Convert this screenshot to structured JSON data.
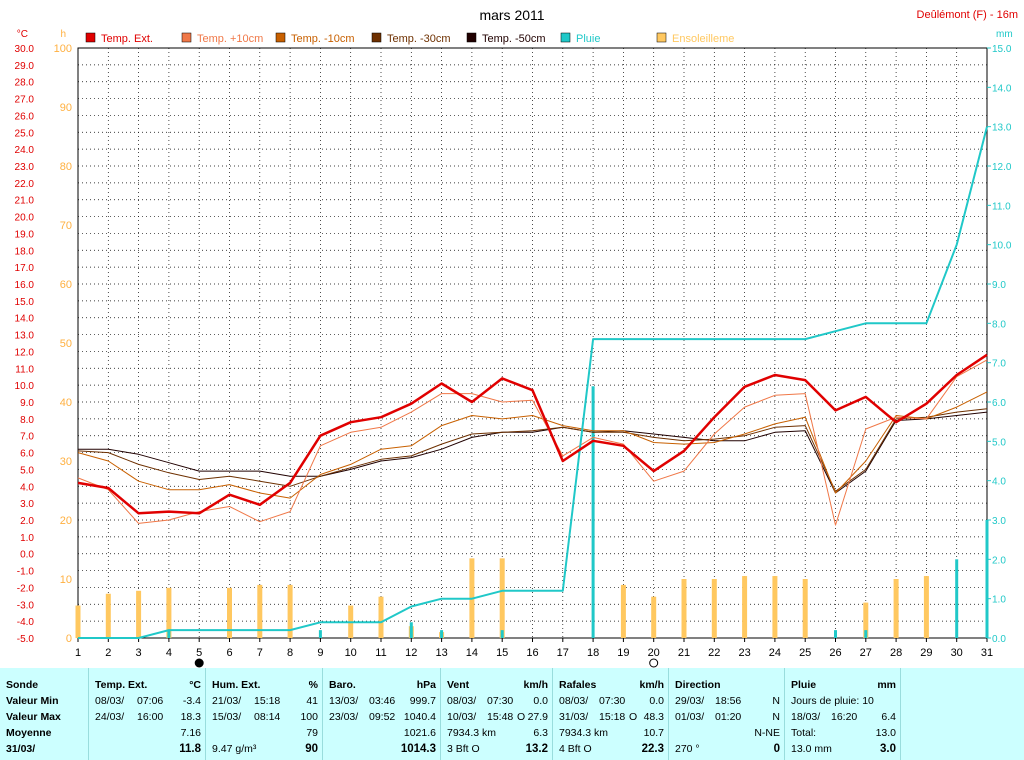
{
  "chart_data": {
    "type": "line",
    "title": "mars 2011",
    "station": "Deûlémont (F) - 16m",
    "x": [
      1,
      2,
      3,
      4,
      5,
      6,
      7,
      8,
      9,
      10,
      11,
      12,
      13,
      14,
      15,
      16,
      17,
      18,
      19,
      20,
      21,
      22,
      23,
      24,
      25,
      26,
      27,
      28,
      29,
      30,
      31
    ],
    "axes": {
      "temp": {
        "label": "°C",
        "range": [
          -5,
          30
        ],
        "ticks": [
          "30.0",
          "29.0",
          "28.0",
          "27.0",
          "26.0",
          "25.0",
          "24.0",
          "23.0",
          "22.0",
          "21.0",
          "20.0",
          "19.0",
          "18.0",
          "17.0",
          "16.0",
          "15.0",
          "14.0",
          "13.0",
          "12.0",
          "11.0",
          "10.0",
          "9.0",
          "8.0",
          "7.0",
          "6.0",
          "5.0",
          "4.0",
          "3.0",
          "2.0",
          "1.0",
          "0.0",
          "-1.0",
          "-2.0",
          "-3.0",
          "-4.0",
          "-5.0"
        ]
      },
      "sun": {
        "label": "h",
        "range": [
          0,
          100
        ],
        "ticks": [
          "100",
          "90",
          "80",
          "70",
          "60",
          "50",
          "40",
          "30",
          "20",
          "10",
          "0"
        ]
      },
      "rain": {
        "label": "mm",
        "range": [
          0,
          15
        ],
        "ticks": [
          "15.0",
          "14.0",
          "13.0",
          "12.0",
          "11.0",
          "10.0",
          "9.0",
          "8.0",
          "7.0",
          "6.0",
          "5.0",
          "4.0",
          "3.0",
          "2.0",
          "1.0",
          "0.0"
        ]
      }
    },
    "xticks": [
      "1",
      "2",
      "3",
      "4",
      "5",
      "6",
      "7",
      "8",
      "9",
      "10",
      "11",
      "12",
      "13",
      "14",
      "15",
      "16",
      "17",
      "18",
      "19",
      "20",
      "21",
      "22",
      "23",
      "24",
      "25",
      "26",
      "27",
      "28",
      "29",
      "30",
      "31"
    ],
    "series": [
      {
        "name": "Temp. Ext.",
        "color": "#e00000",
        "axis": "temp",
        "width": 2.5,
        "values": [
          4.2,
          3.9,
          2.4,
          2.5,
          2.4,
          3.5,
          2.9,
          4.2,
          7.0,
          7.8,
          8.1,
          8.9,
          10.1,
          9.0,
          10.4,
          9.7,
          5.5,
          6.7,
          6.4,
          4.9,
          6.1,
          8.1,
          9.9,
          10.6,
          10.3,
          8.5,
          9.3,
          7.8,
          8.9,
          10.6,
          11.8
        ]
      },
      {
        "name": "Temp. +10cm",
        "color": "#f07848",
        "axis": "temp",
        "width": 1,
        "values": [
          4.5,
          3.8,
          1.8,
          2.0,
          2.5,
          2.8,
          1.9,
          2.5,
          6.4,
          7.2,
          7.5,
          8.4,
          9.5,
          9.5,
          9.0,
          9.1,
          5.8,
          6.9,
          6.5,
          4.3,
          4.9,
          7.1,
          8.7,
          9.4,
          9.5,
          1.7,
          7.4,
          8.1,
          8.0,
          10.5,
          11.5
        ]
      },
      {
        "name": "Temp. -10cm",
        "color": "#c86000",
        "axis": "temp",
        "width": 1,
        "values": [
          6.0,
          5.5,
          4.3,
          3.8,
          3.8,
          4.1,
          3.6,
          3.3,
          4.7,
          5.3,
          6.2,
          6.4,
          7.6,
          8.2,
          8.0,
          8.2,
          7.6,
          7.3,
          7.3,
          6.6,
          6.5,
          6.6,
          7.1,
          7.7,
          8.1,
          3.6,
          5.5,
          8.2,
          8.0,
          8.7,
          9.6
        ]
      },
      {
        "name": "Temp. -30cm",
        "color": "#6e3000",
        "axis": "temp",
        "width": 1,
        "values": [
          6.1,
          6.0,
          5.3,
          4.8,
          4.4,
          4.6,
          4.3,
          4.0,
          4.6,
          5.1,
          5.6,
          5.8,
          6.5,
          7.1,
          7.2,
          7.3,
          7.5,
          7.2,
          7.2,
          6.9,
          6.7,
          6.8,
          7.0,
          7.5,
          7.6,
          3.7,
          5.0,
          8.0,
          8.1,
          8.4,
          8.6
        ]
      },
      {
        "name": "Temp. -50cm",
        "color": "#200000",
        "axis": "temp",
        "width": 1,
        "values": [
          6.2,
          6.2,
          5.9,
          5.4,
          4.9,
          4.9,
          4.9,
          4.6,
          4.6,
          5.0,
          5.5,
          5.7,
          6.2,
          6.9,
          7.2,
          7.2,
          7.5,
          7.2,
          7.3,
          7.1,
          6.9,
          6.7,
          6.7,
          7.2,
          7.3,
          3.6,
          4.9,
          7.9,
          8.0,
          8.2,
          8.4
        ]
      },
      {
        "name": "Pluie",
        "color": "#20c8c8",
        "axis": "rain",
        "width": 2,
        "values": [
          0,
          0,
          0,
          0.2,
          0.2,
          0.2,
          0.2,
          0.2,
          0.4,
          0.4,
          0.4,
          0.8,
          1.0,
          1.0,
          1.2,
          1.2,
          1.2,
          7.6,
          7.6,
          7.6,
          7.6,
          7.6,
          7.6,
          7.6,
          7.6,
          7.8,
          8.0,
          8.0,
          8.0,
          10.0,
          13.0
        ]
      }
    ],
    "rain_daily": {
      "name": "Pluie (jour)",
      "color": "#20c8c8",
      "axis": "rain",
      "values": [
        0,
        0,
        0,
        0.2,
        0,
        0,
        0,
        0,
        0.2,
        0,
        0,
        0.4,
        0.2,
        0,
        0.2,
        0,
        0,
        6.4,
        0,
        0,
        0,
        0,
        0,
        0,
        0,
        0.2,
        0.2,
        0,
        0,
        2.0,
        3.0
      ]
    },
    "sunshine": {
      "name": "Ensoleilleme",
      "color": "#ffc860",
      "axis": "sun",
      "values": [
        5.5,
        7.5,
        8.0,
        8.5,
        0,
        8.5,
        9.0,
        9.0,
        0,
        5.5,
        7.0,
        2.0,
        1.0,
        13.5,
        13.5,
        0,
        0,
        0,
        9.0,
        7.0,
        10.0,
        10.0,
        10.5,
        10.5,
        10.0,
        0,
        6.0,
        10.0,
        10.5,
        0,
        0
      ]
    },
    "moon_phases": [
      {
        "day": 5,
        "phase": "new-moon"
      },
      {
        "day": 20,
        "phase": "full-moon"
      }
    ],
    "legend_placement": "top",
    "grid": true
  },
  "stats": {
    "labels": {
      "sonde": "Sonde",
      "min": "Valeur Min",
      "max": "Valeur Max",
      "mean": "Moyenne",
      "day": "31/03/"
    },
    "temp": {
      "title": "Temp. Ext.",
      "unit": "°C",
      "min_date": "08/03/",
      "min_time": "07:06",
      "min_val": "-3.4",
      "max_date": "24/03/",
      "max_time": "16:00",
      "max_val": "18.3",
      "mean": "7.16",
      "last": "11.8"
    },
    "hum": {
      "title": "Hum. Ext.",
      "unit": "%",
      "min_date": "21/03/",
      "min_time": "15:18",
      "min_val": "41",
      "max_date": "15/03/",
      "max_time": "08:14",
      "max_val": "100",
      "mean": "79",
      "extra": "9.47 g/m³",
      "last": "90"
    },
    "baro": {
      "title": "Baro.",
      "unit": "hPa",
      "min_date": "13/03/",
      "min_time": "03:46",
      "min_val": "999.7",
      "max_date": "23/03/",
      "max_time": "09:52",
      "max_val": "1040.4",
      "mean": "1021.6",
      "last": "1014.3"
    },
    "vent": {
      "title": "Vent",
      "unit": "km/h",
      "min_date": "08/03/",
      "min_time": "07:30",
      "min_val": "0.0",
      "max_date": "10/03/",
      "max_time": "15:48",
      "max_dir": "O",
      "max_val": "27.9",
      "dist": "7934.3 km",
      "mean": "6.3",
      "bft": "3 Bft O",
      "last": "13.2"
    },
    "rafales": {
      "title": "Rafales",
      "unit": "km/h",
      "min_date": "08/03/",
      "min_time": "07:30",
      "min_val": "0.0",
      "max_date": "31/03/",
      "max_time": "15:18",
      "max_dir": "O",
      "max_val": "48.3",
      "dist": "7934.3 km",
      "mean": "10.7",
      "bft": "4 Bft O",
      "last": "22.3"
    },
    "direction": {
      "title": "Direction",
      "min_date": "29/03/",
      "min_time": "18:56",
      "min_val": "N",
      "max_date": "01/03/",
      "max_time": "01:20",
      "max_val": "N",
      "mean": "N-NE",
      "deg": "270 °",
      "last": "0"
    },
    "pluie": {
      "title": "Pluie",
      "unit": "mm",
      "days_label": "Jours de pluie: 10",
      "max_date": "18/03/",
      "max_time": "16:20",
      "max_val": "6.4",
      "total_label": "Total:",
      "total_val": "13.0",
      "last_total": "13.0 mm",
      "last": "3.0"
    }
  }
}
